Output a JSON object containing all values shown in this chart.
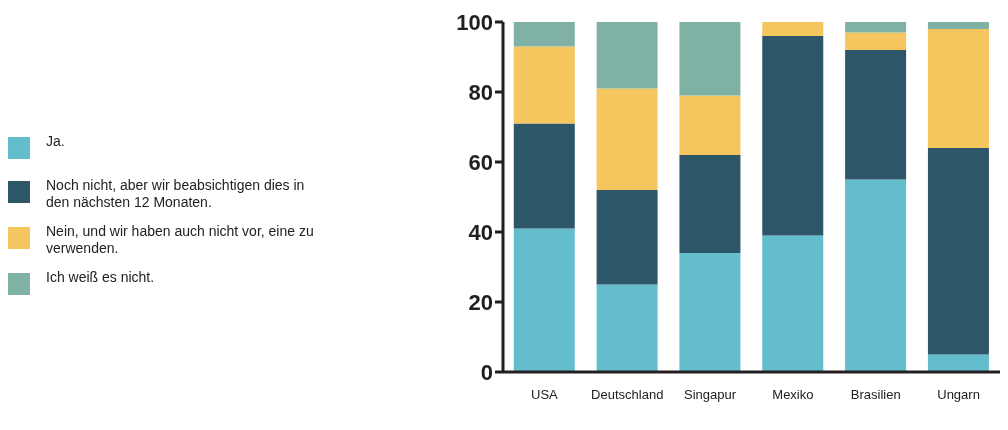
{
  "chart_data": {
    "type": "bar",
    "stacked": true,
    "categories": [
      "USA",
      "Deutschland",
      "Singapur",
      "Mexiko",
      "Brasilien",
      "Ungarn"
    ],
    "series": [
      {
        "name": "Ja.",
        "color": "#64bdcd",
        "values": [
          41,
          25,
          34,
          39,
          55,
          5
        ]
      },
      {
        "name": "Noch nicht, aber wir beabsichtigen dies in den nächsten 12 Monaten.",
        "color": "#2d5669",
        "values": [
          30,
          27,
          28,
          57,
          37,
          59
        ]
      },
      {
        "name": "Nein, und wir haben auch nicht vor, eine zu verwenden.",
        "color": "#f5c65e",
        "values": [
          22,
          29,
          17,
          4,
          5,
          34
        ]
      },
      {
        "name": "Ich weiß es nicht.",
        "color": "#80b1a5",
        "values": [
          7,
          19,
          21,
          0,
          3,
          2
        ]
      }
    ],
    "ylim": [
      0,
      100
    ],
    "yticks": [
      0,
      20,
      40,
      60,
      80,
      100
    ],
    "grid": false,
    "legend": "left"
  }
}
